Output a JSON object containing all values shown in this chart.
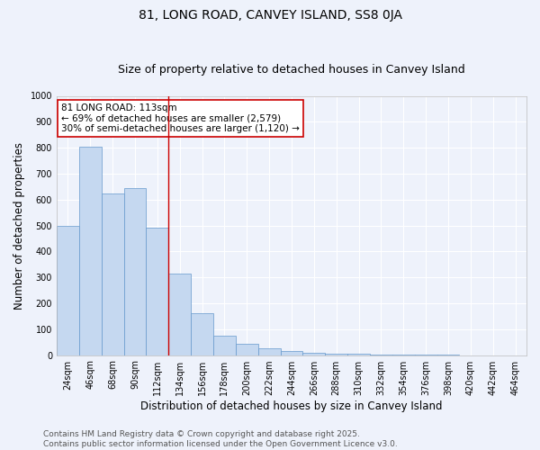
{
  "title": "81, LONG ROAD, CANVEY ISLAND, SS8 0JA",
  "subtitle": "Size of property relative to detached houses in Canvey Island",
  "xlabel": "Distribution of detached houses by size in Canvey Island",
  "ylabel": "Number of detached properties",
  "bin_labels": [
    "24sqm",
    "46sqm",
    "68sqm",
    "90sqm",
    "112sqm",
    "134sqm",
    "156sqm",
    "178sqm",
    "200sqm",
    "222sqm",
    "244sqm",
    "266sqm",
    "288sqm",
    "310sqm",
    "332sqm",
    "354sqm",
    "376sqm",
    "398sqm",
    "420sqm",
    "442sqm",
    "464sqm"
  ],
  "bar_heights": [
    500,
    805,
    625,
    645,
    490,
    315,
    160,
    75,
    45,
    25,
    15,
    10,
    7,
    5,
    3,
    2,
    2,
    1,
    0,
    0,
    0
  ],
  "bar_color": "#c5d8f0",
  "bar_edgecolor": "#6699cc",
  "ylim": [
    0,
    1000
  ],
  "yticks": [
    0,
    100,
    200,
    300,
    400,
    500,
    600,
    700,
    800,
    900,
    1000
  ],
  "red_line_bin_index": 4,
  "annotation_text_line1": "81 LONG ROAD: 113sqm",
  "annotation_text_line2": "← 69% of detached houses are smaller (2,579)",
  "annotation_text_line3": "30% of semi-detached houses are larger (1,120) →",
  "annotation_box_color": "#ffffff",
  "annotation_box_edgecolor": "#cc0000",
  "footer_line1": "Contains HM Land Registry data © Crown copyright and database right 2025.",
  "footer_line2": "Contains public sector information licensed under the Open Government Licence v3.0.",
  "background_color": "#eef2fb",
  "grid_color": "#ffffff",
  "title_fontsize": 10,
  "subtitle_fontsize": 9,
  "axis_label_fontsize": 8.5,
  "tick_fontsize": 7,
  "annotation_fontsize": 7.5,
  "footer_fontsize": 6.5
}
